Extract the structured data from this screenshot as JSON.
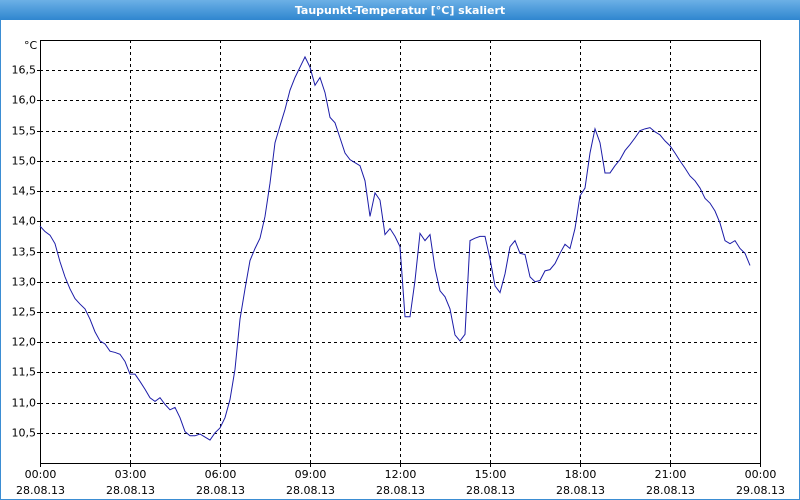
{
  "chart_data": {
    "type": "line",
    "title": "Taupunkt-Temperatur [°C] skaliert",
    "ylabel": "°C",
    "x": [
      0,
      10,
      20,
      30,
      40,
      50,
      60,
      70,
      80,
      90,
      100,
      110,
      120,
      130,
      140,
      150,
      160,
      170,
      180,
      190,
      200,
      210,
      220,
      230,
      240,
      250,
      260,
      270,
      280,
      290,
      300,
      310,
      320,
      330,
      340,
      350,
      360,
      370,
      380,
      390,
      400,
      410,
      420,
      430,
      440,
      450,
      460,
      470,
      480,
      490,
      500,
      510,
      520,
      530,
      540,
      550,
      560,
      570,
      580,
      590,
      600,
      610,
      620,
      630,
      640,
      650,
      660,
      670,
      680,
      690,
      700,
      710,
      720,
      730,
      740,
      750,
      760,
      770,
      780,
      790,
      800,
      810,
      820,
      830,
      840,
      850,
      860,
      870,
      880,
      890,
      900,
      910,
      920,
      930,
      940,
      950,
      960,
      970,
      980,
      990,
      1000,
      1010,
      1020,
      1030,
      1040,
      1050,
      1060,
      1070,
      1080,
      1090,
      1100,
      1110,
      1120,
      1130,
      1140,
      1150,
      1160,
      1170,
      1180,
      1190,
      1200,
      1210,
      1220,
      1230,
      1240,
      1250,
      1260,
      1270,
      1280,
      1290,
      1300,
      1310,
      1320,
      1330,
      1340,
      1350,
      1360,
      1370,
      1380,
      1390,
      1400,
      1410,
      1420
    ],
    "series": [
      {
        "name": "Taupunkt-Temperatur",
        "color": "#1c1ca8",
        "values": [
          13.92,
          13.83,
          13.77,
          13.63,
          13.33,
          13.08,
          12.88,
          12.72,
          12.63,
          12.55,
          12.38,
          12.17,
          12.02,
          11.97,
          11.85,
          11.83,
          11.8,
          11.68,
          11.47,
          11.47,
          11.35,
          11.22,
          11.08,
          11.02,
          11.08,
          10.97,
          10.88,
          10.92,
          10.75,
          10.52,
          10.45,
          10.45,
          10.48,
          10.43,
          10.38,
          10.5,
          10.58,
          10.75,
          11.05,
          11.55,
          12.38,
          12.88,
          13.35,
          13.55,
          13.72,
          14.08,
          14.63,
          15.3,
          15.58,
          15.85,
          16.17,
          16.38,
          16.55,
          16.72,
          16.55,
          16.25,
          16.38,
          16.13,
          15.72,
          15.63,
          15.38,
          15.13,
          15.02,
          14.97,
          14.92,
          14.67,
          14.08,
          14.47,
          14.35,
          13.78,
          13.88,
          13.75,
          13.58,
          12.42,
          12.42,
          13.02,
          13.8,
          13.68,
          13.78,
          13.22,
          12.85,
          12.75,
          12.55,
          12.12,
          12.02,
          12.13,
          13.68,
          13.72,
          13.75,
          13.75,
          13.38,
          12.93,
          12.82,
          13.13,
          13.58,
          13.68,
          13.47,
          13.45,
          13.08,
          13.0,
          13.02,
          13.18,
          13.2,
          13.3,
          13.47,
          13.62,
          13.55,
          13.88,
          14.42,
          14.55,
          15.13,
          15.53,
          15.3,
          14.8,
          14.8,
          14.92,
          15.02,
          15.17,
          15.27,
          15.38,
          15.5,
          15.53,
          15.55,
          15.48,
          15.43,
          15.33,
          15.25,
          15.13,
          15.0,
          14.88,
          14.75,
          14.67,
          14.55,
          14.38,
          14.3,
          14.17,
          13.97,
          13.68,
          13.63,
          13.68,
          13.55,
          13.47,
          13.27
        ]
      }
    ],
    "xlim": [
      0,
      1440
    ],
    "xticks": [
      {
        "value": 0,
        "label": "00:00",
        "date": "28.08.13"
      },
      {
        "value": 180,
        "label": "03:00",
        "date": "28.08.13"
      },
      {
        "value": 360,
        "label": "06:00",
        "date": "28.08.13"
      },
      {
        "value": 540,
        "label": "09:00",
        "date": "28.08.13"
      },
      {
        "value": 720,
        "label": "12:00",
        "date": "28.08.13"
      },
      {
        "value": 900,
        "label": "15:00",
        "date": "28.08.13"
      },
      {
        "value": 1080,
        "label": "18:00",
        "date": "28.08.13"
      },
      {
        "value": 1260,
        "label": "21:00",
        "date": "28.08.13"
      },
      {
        "value": 1440,
        "label": "00:00",
        "date": "29.08.13"
      }
    ],
    "ylim": [
      10,
      17
    ],
    "yticks": [
      {
        "value": 10.5,
        "label": "10,5"
      },
      {
        "value": 11,
        "label": "11,0"
      },
      {
        "value": 11.5,
        "label": "11,5"
      },
      {
        "value": 12,
        "label": "12,0"
      },
      {
        "value": 12.5,
        "label": "12,5"
      },
      {
        "value": 13,
        "label": "13,0"
      },
      {
        "value": 13.5,
        "label": "13,5"
      },
      {
        "value": 14,
        "label": "14,0"
      },
      {
        "value": 14.5,
        "label": "14,5"
      },
      {
        "value": 15,
        "label": "15,0"
      },
      {
        "value": 15.5,
        "label": "15,5"
      },
      {
        "value": 16,
        "label": "16,0"
      },
      {
        "value": 16.5,
        "label": "16,5"
      }
    ],
    "grid": true
  }
}
